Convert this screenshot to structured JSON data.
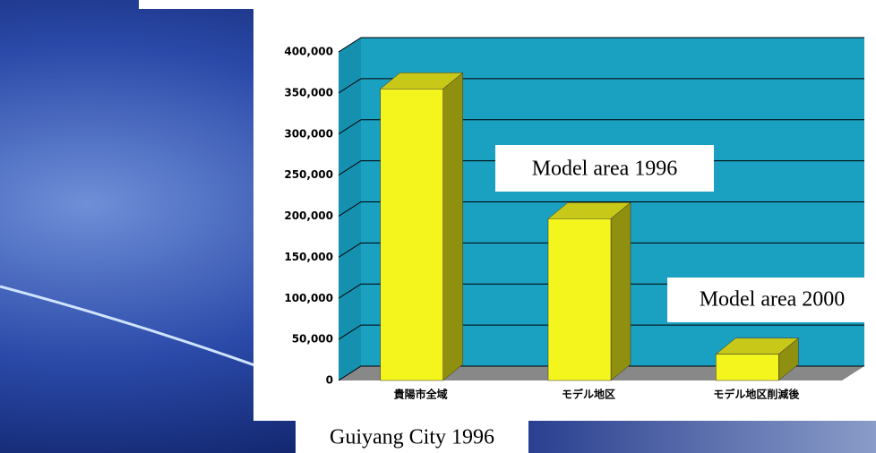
{
  "chart_data": {
    "type": "bar3d",
    "categories": [
      "貴陽市全域",
      "モデル地区",
      "モデル地区削減後"
    ],
    "values": [
      355000,
      197000,
      32000
    ],
    "color": "#f5f51e",
    "ylim": [
      0,
      400000
    ],
    "yticks": [
      0,
      {
        "value": 50000,
        "label": "50,000"
      },
      {
        "value": 100000,
        "label": "100,000"
      },
      {
        "value": 150000,
        "label": "150,000"
      },
      {
        "value": 200000,
        "label": "200,000"
      },
      {
        "value": 250000,
        "label": "250,000"
      },
      {
        "value": 300000,
        "label": "300,000"
      },
      {
        "value": 350000,
        "label": "350,000"
      },
      {
        "value": 400000,
        "label": "400,000"
      }
    ],
    "grid": true,
    "annotations": [
      "Model area 1996",
      "Model area 2000",
      "Guiyang City 1996"
    ]
  }
}
